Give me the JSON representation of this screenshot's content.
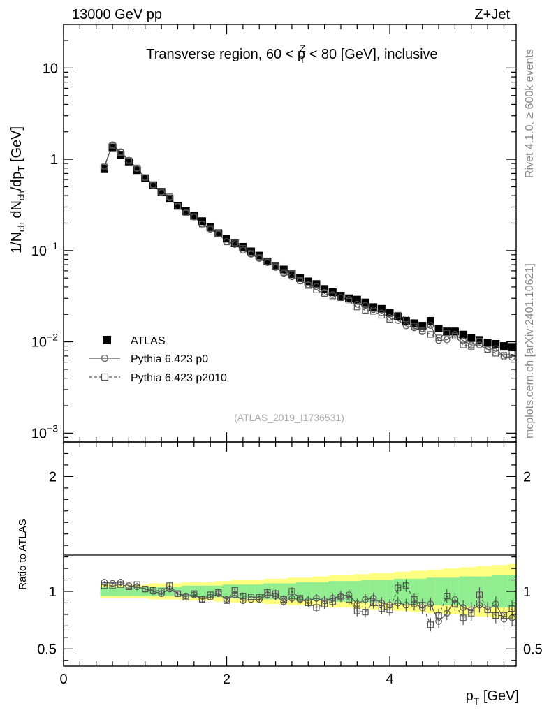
{
  "header": {
    "energy": "13000 GeV pp",
    "process": "Z+Jet",
    "title": "Transverse region, 60 < p",
    "title_sup": "Z",
    "title_sub": "T",
    "title_rest": " < 80 [GeV], inclusive",
    "watermark": "(ATLAS_2019_I1736531)"
  },
  "side": {
    "rivet": "Rivet 4.1.0, ≥ 600k events",
    "mcplots": "mcplots.cern.ch [arXiv:2401.10621]"
  },
  "legend": [
    {
      "label": "ATLAS"
    },
    {
      "label": "Pythia 6.423 p0"
    },
    {
      "label": "Pythia 6.423 p2010"
    }
  ],
  "axes": {
    "ylabel_main": "1/N",
    "ylabel_main_sub1": "ch",
    "ylabel_main_mid": " dN",
    "ylabel_main_sub2": "ch",
    "ylabel_main_end": "/dp",
    "ylabel_main_sub3": "T",
    "ylabel_main_unit": " [GeV]",
    "ylabel_ratio": "Ratio to ATLAS",
    "xlabel": "p",
    "xlabel_sub": "T",
    "xlabel_unit": " [GeV]",
    "xticks": [
      "0",
      "2",
      "4"
    ],
    "yticks_main": [
      {
        "base": "10",
        "exp": "−3"
      },
      {
        "base": "10",
        "exp": "−2"
      },
      {
        "base": "10",
        "exp": "−1"
      },
      {
        "base": "1",
        "exp": ""
      },
      {
        "base": "10",
        "exp": ""
      }
    ],
    "yticks_ratio": [
      "0.5",
      "1",
      "2"
    ]
  },
  "chart_data": {
    "type": "scatter",
    "title": "Transverse region, 60 < pT(Z) < 80 [GeV], inclusive",
    "xlabel": "pT [GeV]",
    "ylabel": "1/Nch dNch/dpT [GeV]",
    "xlim": [
      0,
      5.55
    ],
    "ylim": [
      0.0008,
      30
    ],
    "yscale": "log",
    "ratio_ylim": [
      0.35,
      2.3
    ],
    "x": [
      0.5,
      0.6,
      0.7,
      0.8,
      0.9,
      1.0,
      1.1,
      1.2,
      1.3,
      1.4,
      1.5,
      1.6,
      1.7,
      1.8,
      1.9,
      2.0,
      2.1,
      2.2,
      2.3,
      2.4,
      2.5,
      2.6,
      2.7,
      2.8,
      2.9,
      3.0,
      3.1,
      3.2,
      3.3,
      3.4,
      3.5,
      3.6,
      3.7,
      3.8,
      3.9,
      4.0,
      4.1,
      4.2,
      4.3,
      4.4,
      4.5,
      4.6,
      4.7,
      4.8,
      4.9,
      5.0,
      5.1,
      5.2,
      5.3,
      5.4,
      5.5
    ],
    "series": [
      {
        "name": "ATLAS",
        "marker": "filled-square",
        "values": [
          0.78,
          1.35,
          1.12,
          0.93,
          0.76,
          0.62,
          0.52,
          0.44,
          0.37,
          0.31,
          0.27,
          0.24,
          0.21,
          0.18,
          0.155,
          0.135,
          0.12,
          0.11,
          0.098,
          0.088,
          0.076,
          0.068,
          0.062,
          0.055,
          0.05,
          0.046,
          0.043,
          0.038,
          0.035,
          0.032,
          0.03,
          0.029,
          0.027,
          0.024,
          0.023,
          0.021,
          0.019,
          0.017,
          0.016,
          0.015,
          0.017,
          0.014,
          0.013,
          0.013,
          0.012,
          0.011,
          0.0105,
          0.0098,
          0.0095,
          0.009,
          0.0088
        ],
        "band_inner": [
          0.04,
          0.04,
          0.04,
          0.04,
          0.04,
          0.04,
          0.04,
          0.04,
          0.04,
          0.04,
          0.05,
          0.05,
          0.05,
          0.05,
          0.05,
          0.06,
          0.06,
          0.06,
          0.06,
          0.06,
          0.07,
          0.07,
          0.07,
          0.07,
          0.08,
          0.08,
          0.08,
          0.08,
          0.09,
          0.09,
          0.09,
          0.09,
          0.1,
          0.1,
          0.1,
          0.1,
          0.11,
          0.11,
          0.11,
          0.11,
          0.12,
          0.12,
          0.12,
          0.12,
          0.13,
          0.13,
          0.13,
          0.13,
          0.14,
          0.14,
          0.14
        ],
        "band_outer": [
          0.06,
          0.06,
          0.06,
          0.06,
          0.06,
          0.06,
          0.07,
          0.07,
          0.07,
          0.07,
          0.08,
          0.08,
          0.08,
          0.08,
          0.09,
          0.09,
          0.1,
          0.1,
          0.1,
          0.1,
          0.11,
          0.11,
          0.11,
          0.12,
          0.12,
          0.12,
          0.13,
          0.13,
          0.14,
          0.14,
          0.14,
          0.15,
          0.15,
          0.16,
          0.16,
          0.16,
          0.17,
          0.17,
          0.18,
          0.18,
          0.19,
          0.19,
          0.2,
          0.2,
          0.21,
          0.21,
          0.22,
          0.22,
          0.23,
          0.23,
          0.24
        ]
      },
      {
        "name": "Pythia 6.423 p0",
        "marker": "open-circle",
        "ratio": [
          1.08,
          1.07,
          1.08,
          1.05,
          1.04,
          1.02,
          1.0,
          0.98,
          1.02,
          0.98,
          0.96,
          0.97,
          0.93,
          0.95,
          0.98,
          0.93,
          0.97,
          0.92,
          0.93,
          0.93,
          0.97,
          0.96,
          0.91,
          0.94,
          0.93,
          0.92,
          0.94,
          0.92,
          0.94,
          0.96,
          0.97,
          0.89,
          0.93,
          0.94,
          0.9,
          0.88,
          0.9,
          0.88,
          0.89,
          0.86,
          0.89,
          0.74,
          0.81,
          0.93,
          0.86,
          0.84,
          0.88,
          0.84,
          0.89,
          0.76,
          0.77
        ]
      },
      {
        "name": "Pythia 6.423 p2010",
        "marker": "open-square",
        "ratio": [
          1.05,
          1.05,
          1.06,
          1.04,
          1.06,
          1.02,
          1.01,
          1.0,
          1.05,
          0.98,
          0.95,
          0.98,
          0.93,
          0.97,
          0.99,
          0.92,
          1.01,
          0.96,
          0.95,
          0.95,
          0.99,
          0.98,
          0.93,
          1.0,
          0.94,
          0.9,
          0.86,
          0.89,
          0.91,
          0.95,
          0.93,
          0.83,
          0.82,
          0.9,
          0.85,
          0.84,
          1.03,
          1.05,
          0.93,
          0.88,
          0.71,
          0.79,
          0.96,
          0.89,
          0.77,
          0.81,
          0.97,
          0.84,
          0.79,
          0.79,
          0.85
        ]
      }
    ],
    "legend_position": "middle-left"
  }
}
